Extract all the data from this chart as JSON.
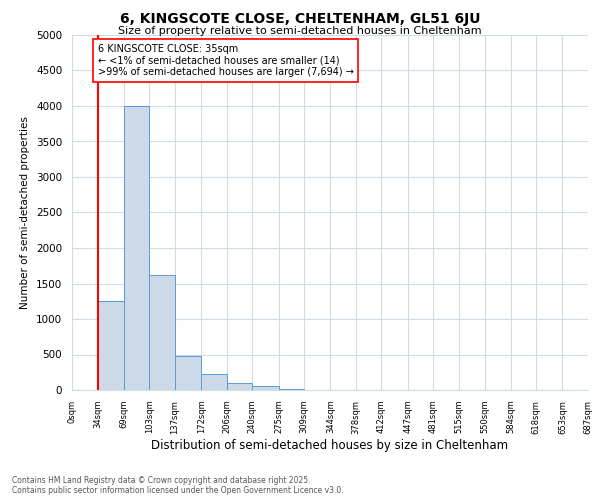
{
  "title1": "6, KINGSCOTE CLOSE, CHELTENHAM, GL51 6JU",
  "title2": "Size of property relative to semi-detached houses in Cheltenham",
  "xlabel": "Distribution of semi-detached houses by size in Cheltenham",
  "ylabel": "Number of semi-detached properties",
  "bar_edges": [
    0,
    34,
    69,
    103,
    137,
    172,
    206,
    240,
    275,
    309,
    344,
    378,
    412,
    447,
    481,
    515,
    550,
    584,
    618,
    653,
    687
  ],
  "bar_heights": [
    5,
    1250,
    4000,
    1620,
    480,
    220,
    100,
    50,
    15,
    5,
    2,
    1,
    0,
    0,
    0,
    0,
    0,
    0,
    0,
    0
  ],
  "tick_labels": [
    "0sqm",
    "34sqm",
    "69sqm",
    "103sqm",
    "137sqm",
    "172sqm",
    "206sqm",
    "240sqm",
    "275sqm",
    "309sqm",
    "344sqm",
    "378sqm",
    "412sqm",
    "447sqm",
    "481sqm",
    "515sqm",
    "550sqm",
    "584sqm",
    "618sqm",
    "653sqm",
    "687sqm"
  ],
  "bar_color": "#ccd9e8",
  "bar_edge_color": "#5b9bd5",
  "red_line_x": 34,
  "ylim": [
    0,
    5000
  ],
  "yticks": [
    0,
    500,
    1000,
    1500,
    2000,
    2500,
    3000,
    3500,
    4000,
    4500,
    5000
  ],
  "annotation_title": "6 KINGSCOTE CLOSE: 35sqm",
  "annotation_line1": "← <1% of semi-detached houses are smaller (14)",
  "annotation_line2": ">99% of semi-detached houses are larger (7,694) →",
  "footer1": "Contains HM Land Registry data © Crown copyright and database right 2025.",
  "footer2": "Contains public sector information licensed under the Open Government Licence v3.0.",
  "bg_color": "#ffffff",
  "grid_color": "#d0dce8"
}
